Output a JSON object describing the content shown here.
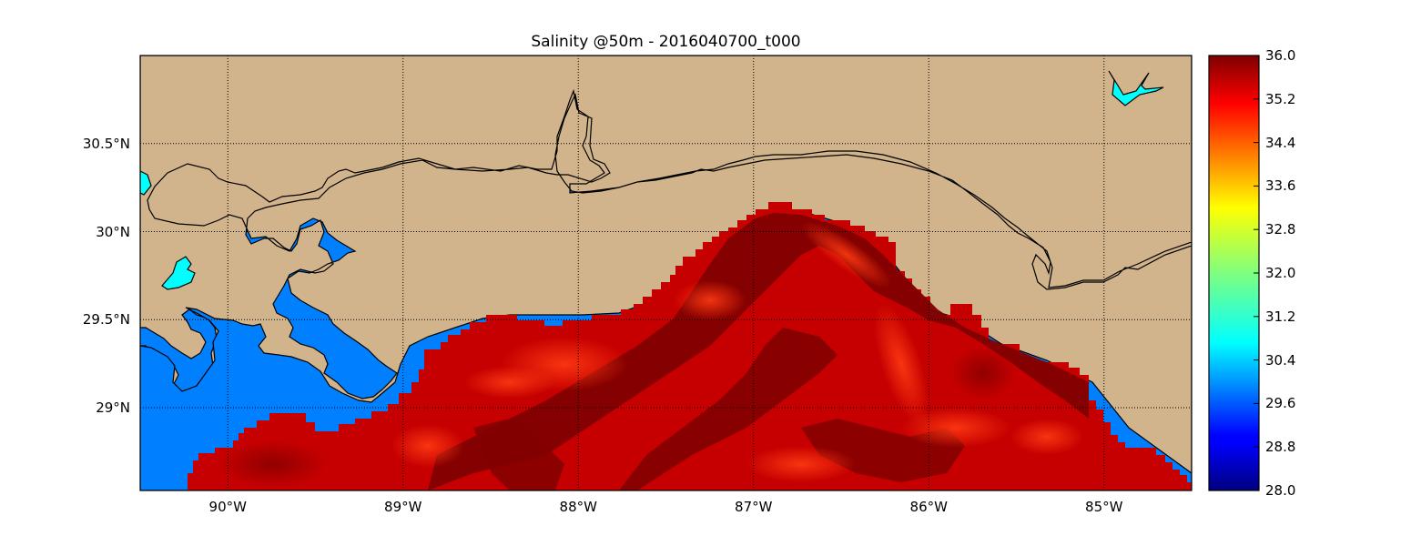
{
  "title": "Salinity @50m - 2016040700_t000",
  "map": {
    "lon_range": [
      -90.5,
      -84.5
    ],
    "lat_range": [
      28.53,
      31.0
    ],
    "grid": true,
    "land_color": "#d2b48c",
    "water_color": "#0080ff",
    "lake_color": "#00ffff",
    "lon_ticks": [
      {
        "value": -90,
        "label": "90°W"
      },
      {
        "value": -89,
        "label": "89°W"
      },
      {
        "value": -88,
        "label": "88°W"
      },
      {
        "value": -87,
        "label": "87°W"
      },
      {
        "value": -86,
        "label": "86°W"
      },
      {
        "value": -85,
        "label": "85°W"
      }
    ],
    "lat_ticks": [
      {
        "value": 30.5,
        "label": "30.5°N"
      },
      {
        "value": 30.0,
        "label": "30°N"
      },
      {
        "value": 29.5,
        "label": "29.5°N"
      },
      {
        "value": 29.0,
        "label": "29°N"
      }
    ]
  },
  "colorbar": {
    "colormap": "jet",
    "min": 28.0,
    "max": 36.0,
    "tick_labels": [
      "36.0",
      "35.2",
      "34.4",
      "33.6",
      "32.8",
      "32.0",
      "31.2",
      "30.4",
      "29.6",
      "28.8",
      "28.0"
    ]
  }
}
